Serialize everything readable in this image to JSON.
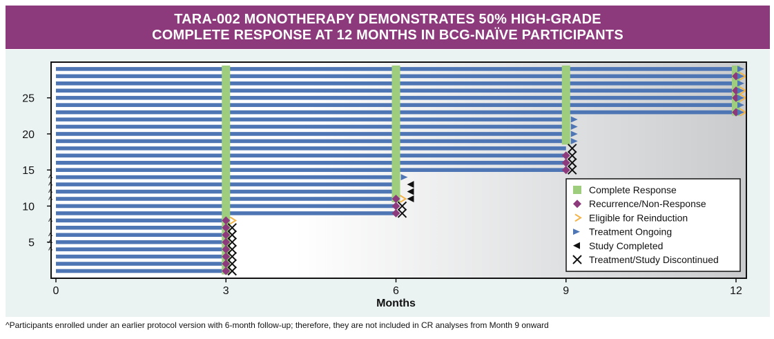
{
  "title_line1": "TARA-002 MONOTHERAPY DEMONSTRATES 50% HIGH-GRADE",
  "title_line2": "COMPLETE RESPONSE AT 12 MONTHS IN BCG-NAÏVE PARTICIPANTS",
  "footnote": "^Participants enrolled under an earlier protocol version with 6-month follow-up; therefore, they are not included in CR analyses from Month 9 onward",
  "colors": {
    "banner": "#8c3a7c",
    "bar": "#4f76b4",
    "complete_response": "#9fcd7e",
    "recurrence": "#8c3a7c",
    "reinduction": "#f3b54b",
    "ongoing": "#4f76b4",
    "completed": "#111111",
    "discontinued": "#111111"
  },
  "chart_data": {
    "type": "swimmer",
    "xlabel": "Months",
    "ylabel": "",
    "xlim": [
      0,
      12
    ],
    "ylim": [
      0,
      29
    ],
    "xticks": [
      0,
      3,
      6,
      9,
      12
    ],
    "yticks": [
      5,
      10,
      15,
      20,
      25
    ],
    "participants": [
      {
        "id": 1,
        "end": 3,
        "markers": [
          "recurrence",
          "discontinued"
        ]
      },
      {
        "id": 2,
        "end": 3,
        "markers": [
          "recurrence",
          "discontinued"
        ]
      },
      {
        "id": 3,
        "end": 3,
        "markers": [
          "recurrence",
          "discontinued"
        ]
      },
      {
        "id": 4,
        "end": 3,
        "markers": [
          "recurrence",
          "discontinued"
        ],
        "caret": true
      },
      {
        "id": 5,
        "end": 3,
        "markers": [
          "recurrence",
          "discontinued"
        ],
        "caret": true
      },
      {
        "id": 6,
        "end": 3,
        "markers": [
          "recurrence",
          "discontinued"
        ],
        "caret": true
      },
      {
        "id": 7,
        "end": 3,
        "markers": [
          "recurrence",
          "discontinued"
        ]
      },
      {
        "id": 8,
        "end": 3,
        "markers": [
          "recurrence",
          "reinduction"
        ],
        "caret": true
      },
      {
        "id": 9,
        "end": 6,
        "markers": [
          "recurrence",
          "discontinued"
        ]
      },
      {
        "id": 10,
        "end": 6,
        "markers": [
          "recurrence",
          "discontinued"
        ]
      },
      {
        "id": 11,
        "end": 6,
        "markers": [
          "recurrence",
          "reinduction",
          "completed"
        ],
        "caret": true
      },
      {
        "id": 12,
        "end": 6,
        "markers": [
          "completed"
        ],
        "caret": true
      },
      {
        "id": 13,
        "end": 6,
        "markers": [
          "completed"
        ],
        "caret": true
      },
      {
        "id": 14,
        "end": 6,
        "markers": [
          "ongoing"
        ],
        "caret": true
      },
      {
        "id": 15,
        "end": 9,
        "markers": [
          "recurrence",
          "discontinued"
        ]
      },
      {
        "id": 16,
        "end": 9,
        "markers": [
          "recurrence",
          "discontinued"
        ]
      },
      {
        "id": 17,
        "end": 9,
        "markers": [
          "recurrence",
          "discontinued"
        ]
      },
      {
        "id": 18,
        "end": 9,
        "markers": [
          "discontinued"
        ]
      },
      {
        "id": 19,
        "end": 9,
        "markers": [
          "ongoing"
        ]
      },
      {
        "id": 20,
        "end": 9,
        "markers": [
          "ongoing"
        ]
      },
      {
        "id": 21,
        "end": 9,
        "markers": [
          "ongoing"
        ]
      },
      {
        "id": 22,
        "end": 9,
        "markers": [
          "ongoing"
        ]
      },
      {
        "id": 23,
        "end": 12,
        "markers": [
          "recurrence",
          "reinduction",
          "ongoing"
        ]
      },
      {
        "id": 24,
        "end": 12,
        "markers": [
          "ongoing"
        ]
      },
      {
        "id": 25,
        "end": 12,
        "markers": [
          "recurrence",
          "reinduction",
          "ongoing"
        ]
      },
      {
        "id": 26,
        "end": 12,
        "markers": [
          "recurrence",
          "reinduction",
          "ongoing"
        ]
      },
      {
        "id": 27,
        "end": 12,
        "markers": [
          "ongoing"
        ]
      },
      {
        "id": 28,
        "end": 12,
        "markers": [
          "recurrence",
          "reinduction",
          "ongoing"
        ]
      },
      {
        "id": 29,
        "end": 12,
        "markers": [
          "ongoing"
        ]
      }
    ],
    "complete_response_bands": [
      {
        "month": 3,
        "from": 1,
        "to": 29
      },
      {
        "month": 6,
        "from": 11,
        "to": 29
      },
      {
        "month": 9,
        "from": 19,
        "to": 29
      },
      {
        "month": 12,
        "from": 23,
        "to": 29
      }
    ],
    "legend": [
      {
        "key": "complete_response",
        "label": "Complete Response"
      },
      {
        "key": "recurrence",
        "label": "Recurrence/Non-Response"
      },
      {
        "key": "reinduction",
        "label": "Eligible for Reinduction"
      },
      {
        "key": "ongoing",
        "label": "Treatment Ongoing"
      },
      {
        "key": "completed",
        "label": "Study Completed"
      },
      {
        "key": "discontinued",
        "label": "Treatment/Study Discontinued"
      }
    ],
    "legend_position": "bottom-right",
    "grid": false
  }
}
